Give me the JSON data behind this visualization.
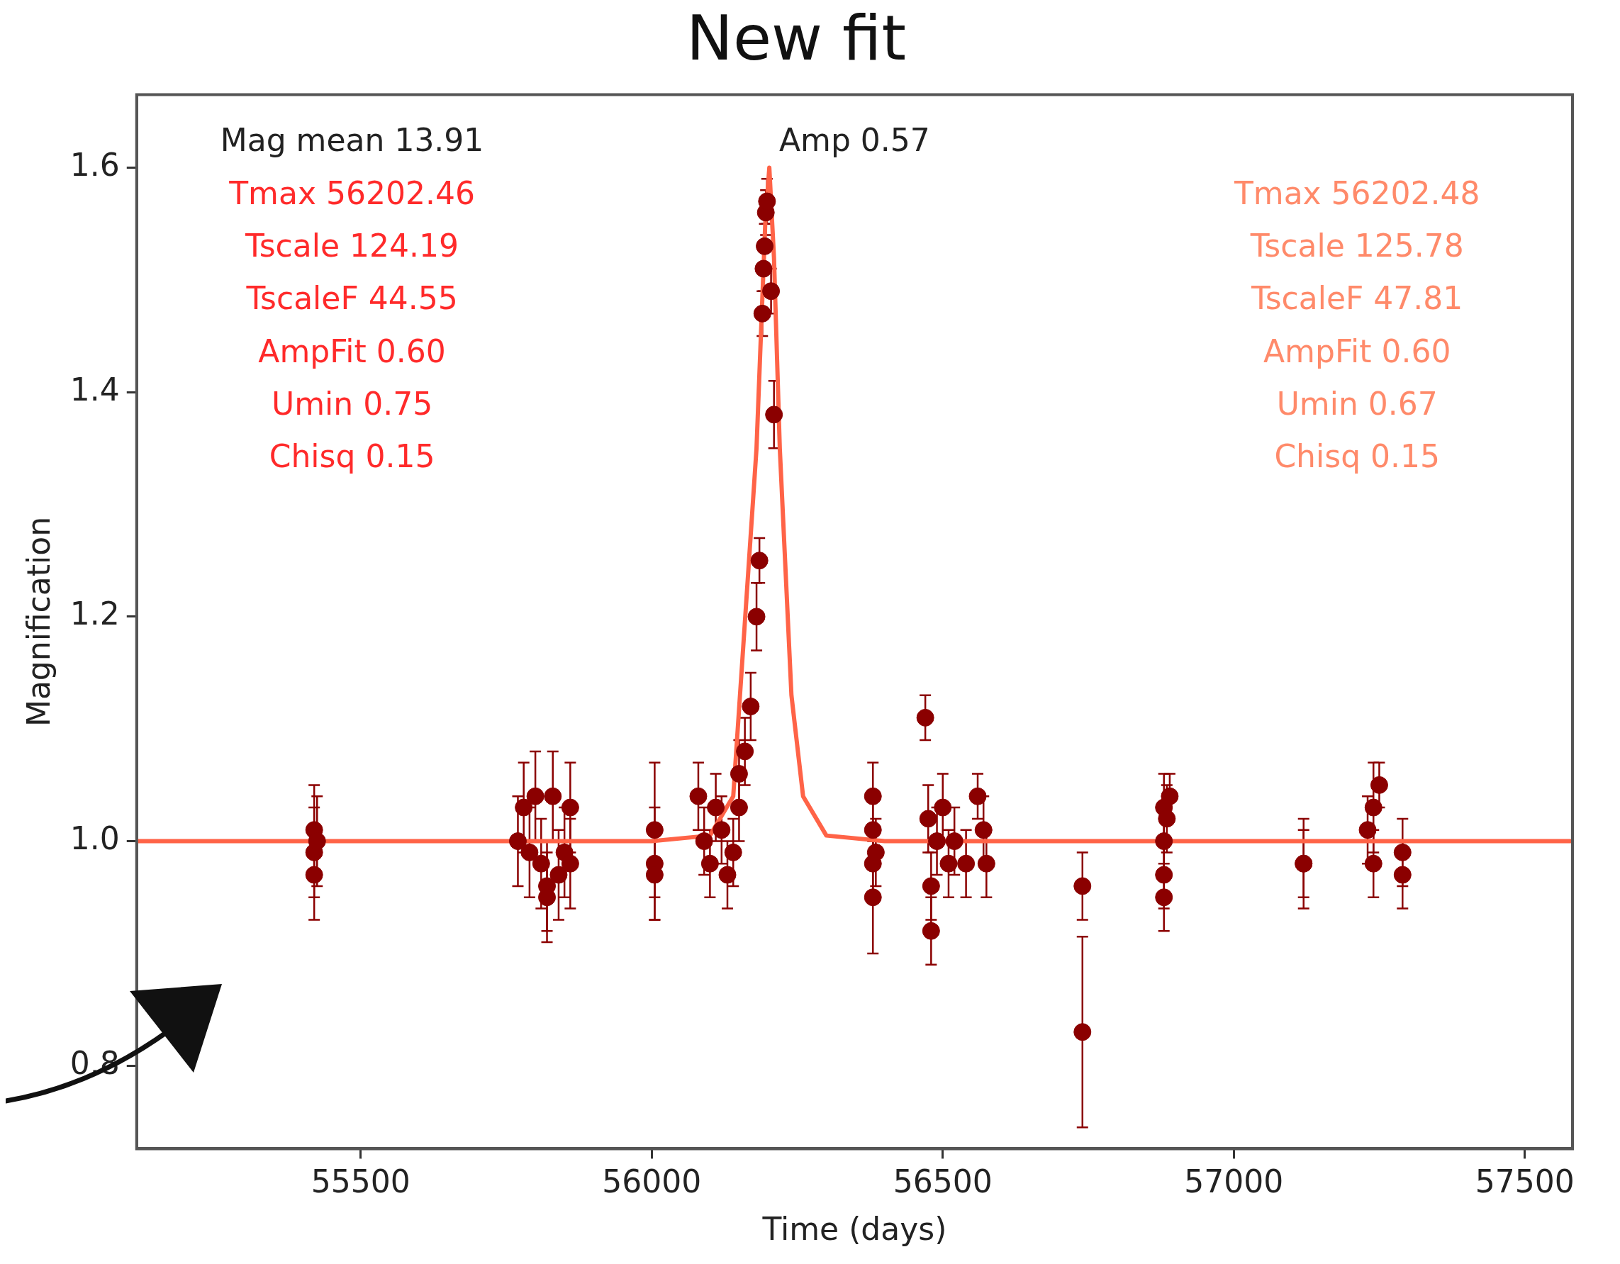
{
  "chart_data": {
    "type": "scatter",
    "title": "New fit",
    "xlabel": "Time (days)",
    "ylabel": "Magnification",
    "xlim": [
      55115,
      57582
    ],
    "xticks": [
      55500,
      56000,
      56500,
      57000,
      57500
    ],
    "ylim": [
      0.726,
      1.665
    ],
    "yticks": [
      0.8,
      {
        "value": 1,
        "label": "1.0"
      },
      1.2,
      1.4,
      1.6
    ],
    "grid": false,
    "legend": false,
    "annotations": [
      "Mag mean 13.91",
      "Amp 0.57",
      "Tmax 56202.46",
      "Tscale 124.19",
      "TscaleF 44.55",
      "AmpFit 0.60",
      "Umin 0.75",
      "Chisq 0.15",
      "Tmax 56202.48",
      "Tscale 125.78",
      "TscaleF 47.81",
      "AmpFit 0.60",
      "Umin 0.67",
      "Chisq 0.15"
    ],
    "series": [
      {
        "type": "scatter",
        "color": "#8b0000",
        "marker": "circle",
        "x": [
          55420,
          55420,
          55420,
          55425,
          55770,
          55780,
          55790,
          55800,
          55810,
          55820,
          55830,
          55840,
          55850,
          55860,
          55860,
          55820,
          56005,
          56005,
          56005,
          56080,
          56090,
          56100,
          56110,
          56120,
          56130,
          56140,
          56150,
          56150,
          56160,
          56170,
          56180,
          56185,
          56190,
          56192,
          56194,
          56196,
          56198,
          56205,
          56210,
          56380,
          56380,
          56380,
          56380,
          56385,
          56470,
          56475,
          56480,
          56480,
          56490,
          56500,
          56510,
          56520,
          56540,
          56560,
          56570,
          56575,
          56740,
          56740,
          56880,
          56880,
          56880,
          56880,
          56885,
          56890,
          57120,
          57120,
          57230,
          57240,
          57250,
          57240,
          57290,
          57290
        ],
        "values": [
          1.01,
          0.99,
          0.97,
          1.0,
          1.0,
          1.03,
          0.99,
          1.04,
          0.98,
          0.96,
          1.04,
          0.97,
          0.99,
          1.03,
          0.98,
          0.95,
          1.01,
          0.98,
          0.97,
          1.04,
          1.0,
          0.98,
          1.03,
          1.01,
          0.97,
          0.99,
          1.03,
          1.06,
          1.08,
          1.12,
          1.2,
          1.25,
          1.47,
          1.51,
          1.53,
          1.56,
          1.57,
          1.49,
          1.38,
          1.04,
          1.01,
          0.98,
          0.95,
          0.99,
          1.11,
          1.02,
          0.96,
          0.92,
          1.0,
          1.03,
          0.98,
          1.0,
          0.98,
          1.04,
          1.01,
          0.98,
          0.96,
          0.83,
          1.03,
          1.0,
          0.97,
          0.95,
          1.02,
          1.04,
          0.98,
          0.98,
          1.01,
          1.03,
          1.05,
          0.98,
          0.97,
          0.99
        ],
        "errors": [
          0.04,
          0.04,
          0.04,
          0.04,
          0.04,
          0.04,
          0.04,
          0.04,
          0.04,
          0.04,
          0.04,
          0.04,
          0.04,
          0.04,
          0.04,
          0.04,
          0.06,
          0.05,
          0.04,
          0.03,
          0.03,
          0.03,
          0.03,
          0.03,
          0.03,
          0.03,
          0.03,
          0.03,
          0.03,
          0.03,
          0.03,
          0.02,
          0.02,
          0.02,
          0.02,
          0.02,
          0.02,
          0.02,
          0.03,
          0.03,
          0.03,
          0.03,
          0.05,
          0.03,
          0.02,
          0.03,
          0.03,
          0.03,
          0.03,
          0.03,
          0.03,
          0.03,
          0.03,
          0.02,
          0.03,
          0.03,
          0.03,
          0.085,
          0.03,
          0.03,
          0.03,
          0.03,
          0.03,
          0.02,
          0.04,
          0.03,
          0.03,
          0.04,
          0.02,
          0.03,
          0.03,
          0.03
        ]
      },
      {
        "type": "line",
        "color": "#ff6347",
        "marker": "none",
        "x": [
          55115,
          56000,
          56100,
          56140,
          56180,
          56195,
          56202,
          56210,
          56220,
          56240,
          56260,
          56300,
          56400,
          57582
        ],
        "values": [
          1.0,
          1.0,
          1.005,
          1.04,
          1.35,
          1.55,
          1.6,
          1.52,
          1.35,
          1.13,
          1.04,
          1.005,
          1.0,
          1.0
        ]
      }
    ]
  }
}
